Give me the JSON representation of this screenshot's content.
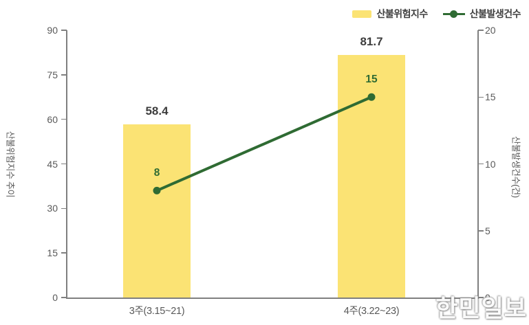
{
  "chart_data": {
    "type": "combo-bar-line",
    "categories": [
      "3주(3.15~21)",
      "4주(3.22~23)"
    ],
    "series": [
      {
        "name": "산불위험지수",
        "type": "bar",
        "axis": "left",
        "values": [
          58.4,
          81.7
        ],
        "labels": [
          "58.4",
          "81.7"
        ],
        "color": "#FBE374"
      },
      {
        "name": "산불발생건수",
        "type": "line",
        "axis": "right",
        "values": [
          8,
          15
        ],
        "labels": [
          "8",
          "15"
        ],
        "color": "#2F6B33"
      }
    ],
    "left_axis": {
      "title": "산불위험지수 추이",
      "min": 0,
      "max": 90,
      "ticks": [
        "0",
        "15",
        "30",
        "45",
        "60",
        "75",
        "90"
      ]
    },
    "right_axis": {
      "title": "산불발생건수(건)",
      "min": 0,
      "max": 20,
      "ticks": [
        "0",
        "5",
        "10",
        "15",
        "20"
      ]
    },
    "legend": {
      "position": "top-right"
    },
    "grid": false,
    "colors": {
      "bar": "#FBE374",
      "line": "#2F6B33",
      "axis_line": "#7F7F7F",
      "tick_label": "#595959",
      "bar_value_label": "#3D3D3D",
      "point_value_label": "#2F6B33"
    }
  },
  "watermark": "한민일보"
}
